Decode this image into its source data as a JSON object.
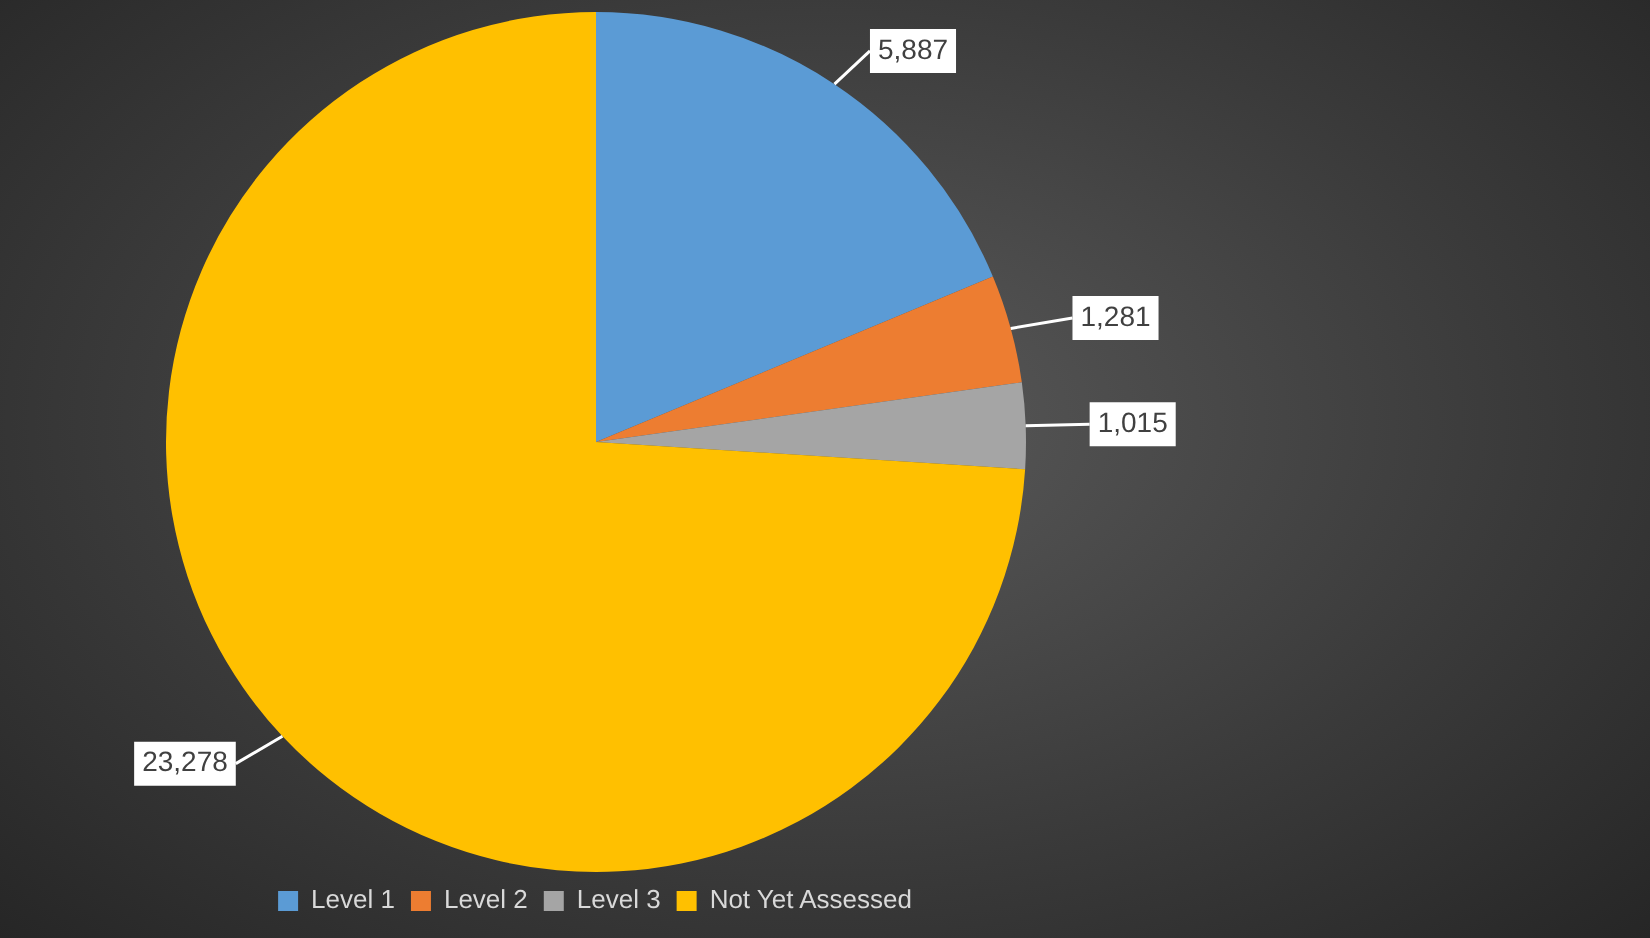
{
  "chart_data": {
    "type": "pie",
    "categories": [
      "Level 1",
      "Level 2",
      "Level 3",
      "Not Yet Assessed"
    ],
    "values": [
      5887,
      1281,
      1015,
      23278
    ],
    "colors": [
      "#5b9bd5",
      "#ed7d31",
      "#a5a5a5",
      "#ffc000"
    ],
    "value_labels": [
      "5,887",
      "1,281",
      "1,015",
      "23,278"
    ],
    "legend": "bottom"
  }
}
